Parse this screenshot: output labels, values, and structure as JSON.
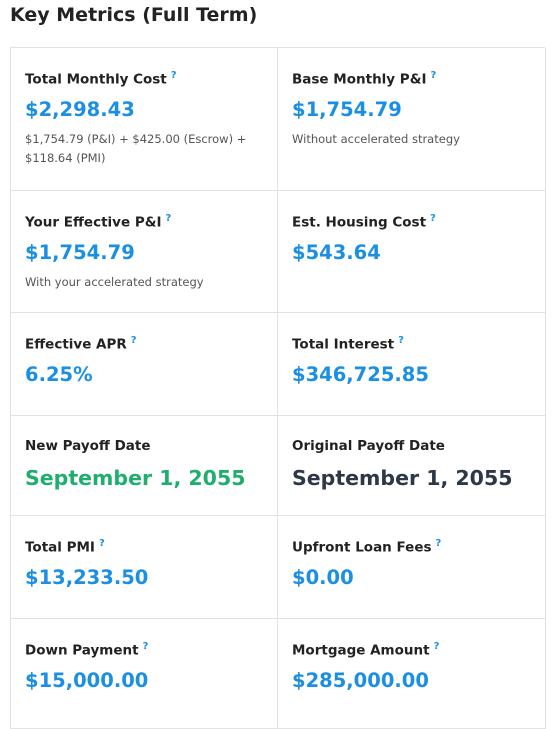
{
  "header": {
    "title": "Key Metrics (Full Term)"
  },
  "cells": [
    {
      "label": "Total Monthly Cost",
      "help": "?",
      "value": "$2,298.43",
      "note": "$1,754.79 (P&I) + $425.00 (Escrow) + $118.64 (PMI)"
    },
    {
      "label": "Base Monthly P&I",
      "help": "?",
      "value": "$1,754.79",
      "note": "Without accelerated strategy"
    },
    {
      "label": "Your Effective P&I",
      "help": "?",
      "value": "$1,754.79",
      "note": "With your accelerated strategy"
    },
    {
      "label": "Est. Housing Cost",
      "help": "?",
      "value": "$543.64"
    },
    {
      "label": "Effective APR",
      "help": "?",
      "value": "6.25%"
    },
    {
      "label": "Total Interest",
      "help": "?",
      "value": "$346,725.85"
    },
    {
      "label": "New Payoff Date",
      "value": "September 1, 2055"
    },
    {
      "label": "Original Payoff Date",
      "value": "September 1, 2055"
    },
    {
      "label": "Total PMI",
      "help": "?",
      "value": "$13,233.50"
    },
    {
      "label": "Upfront Loan Fees",
      "help": "?",
      "value": "$0.00"
    },
    {
      "label": "Down Payment",
      "help": "?",
      "value": "$15,000.00"
    },
    {
      "label": "Mortgage Amount",
      "help": "?",
      "value": "$285,000.00"
    }
  ]
}
